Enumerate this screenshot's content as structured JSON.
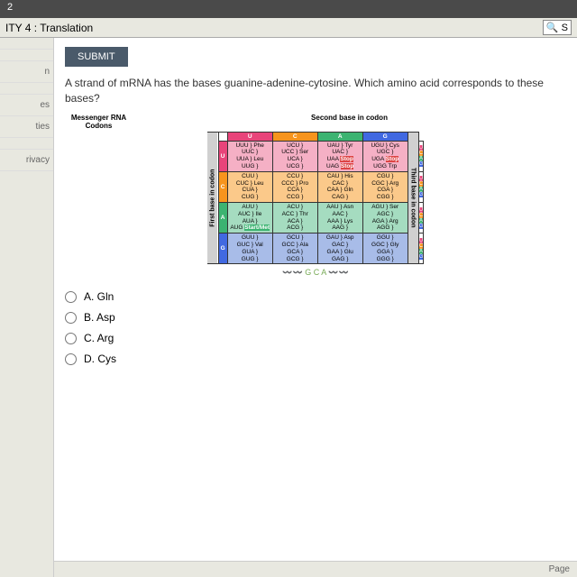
{
  "topbar": "2",
  "title": "ITY 4 : Translation",
  "search_icon": "🔍 S",
  "sidebar": [
    "",
    "",
    "n",
    "",
    "es",
    "ties",
    "",
    "rivacy"
  ],
  "submit": "SUBMIT",
  "question": "A strand of mRNA has the bases guanine-adenine-cytosine. Which amino acid corresponds to these bases?",
  "table_left_title": "Messenger RNA Codons",
  "table_top_title": "Second base in codon",
  "first_label": "First base in codon",
  "third_label": "Third base in codon",
  "headers": [
    "U",
    "C",
    "A",
    "G"
  ],
  "rows": [
    {
      "first": "U",
      "cells": [
        "UUU } Phe\nUUC }\nUUA } Leu\nUUG }",
        "UCU }\nUCC } Ser\nUCA }\nUCG }",
        "UAU } Tyr\nUAC }\nUAA Stop\nUAG Stop",
        "UGU } Cys\nUGC }\nUGA Stop\nUGG Trp"
      ]
    },
    {
      "first": "C",
      "cells": [
        "CUU }\nCUC } Leu\nCUA }\nCUG }",
        "CCU }\nCCC } Pro\nCCA }\nCCG }",
        "CAU } His\nCAC }\nCAA } Gln\nCAG }",
        "CGU }\nCGC } Arg\nCGA }\nCGG }"
      ]
    },
    {
      "first": "A",
      "cells": [
        "AUU }\nAUC } Ile\nAUA }\nAUG Start/Met",
        "ACU }\nACC } Thr\nACA }\nACG }",
        "AAU } Asn\nAAC }\nAAA } Lys\nAAG }",
        "AGU } Ser\nAGC }\nAGA } Arg\nAGG }"
      ]
    },
    {
      "first": "G",
      "cells": [
        "GUU }\nGUC } Val\nGUA }\nGUG }",
        "GCU }\nGCC } Ala\nGCA }\nGCG }",
        "GAU } Asp\nGAC }\nGAA } Glu\nGAG }",
        "GGU }\nGGC } Gly\nGGA }\nGGG }"
      ]
    }
  ],
  "dna_label": "G C A",
  "options": [
    {
      "letter": "A.",
      "text": "Gln"
    },
    {
      "letter": "B.",
      "text": "Asp"
    },
    {
      "letter": "C.",
      "text": "Arg"
    },
    {
      "letter": "D.",
      "text": "Cys"
    }
  ],
  "footer_right": "Page",
  "colors": {
    "u": "#e8447a",
    "c": "#f7941d",
    "a": "#3cb371",
    "g": "#4169e1",
    "stop": "#d44",
    "bg": "#b8b8b0"
  }
}
